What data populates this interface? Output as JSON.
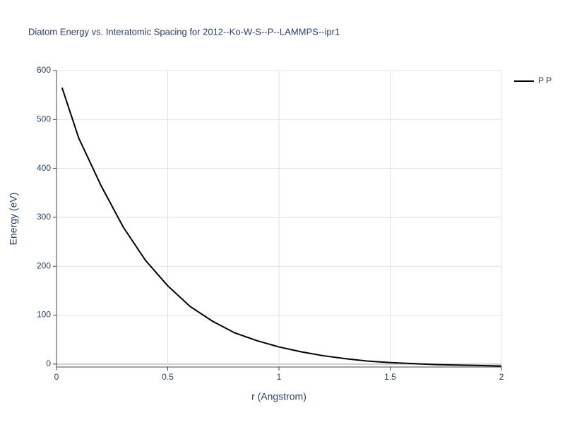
{
  "chart_data": {
    "type": "line",
    "title": "Diatom Energy vs. Interatomic Spacing for 2012--Ko-W-S--P--LAMMPS--ipr1",
    "x_label": "r (Angstrom)",
    "y_label": "Energy (eV)",
    "x": [
      0.025,
      0.1,
      0.2,
      0.3,
      0.4,
      0.5,
      0.6,
      0.7,
      0.8,
      0.9,
      1.0,
      1.1,
      1.2,
      1.3,
      1.4,
      1.5,
      1.6,
      1.7,
      1.8,
      1.9,
      2.0
    ],
    "series": [
      {
        "name": "P P",
        "color": "#000000",
        "values": [
          565,
          462,
          365,
          280,
          212,
          160,
          118,
          88,
          64,
          48,
          35,
          25,
          17,
          11,
          6,
          3,
          1,
          -1,
          -2,
          -3,
          -4
        ]
      }
    ],
    "xlim": [
      0,
      2
    ],
    "xticks": [
      0,
      0.5,
      1,
      1.5,
      2
    ],
    "ylim": [
      -6,
      600
    ],
    "yticks": [
      0,
      100,
      200,
      300,
      400,
      500,
      600
    ],
    "grid": true,
    "legend": "right"
  }
}
